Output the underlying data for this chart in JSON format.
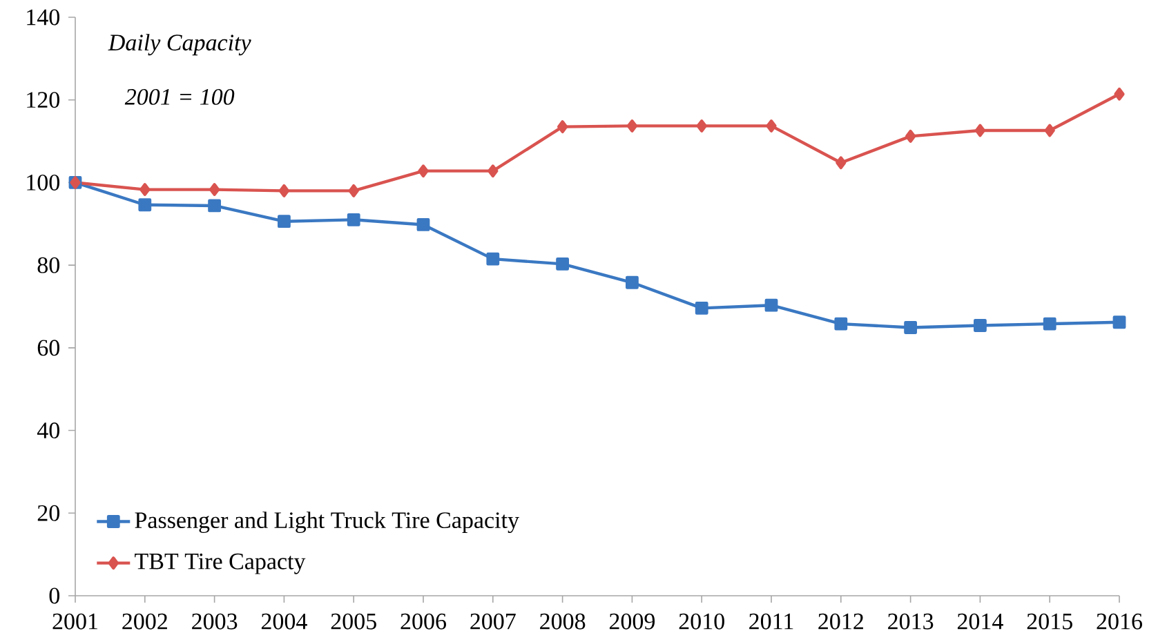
{
  "chart_data": {
    "type": "line",
    "x": [
      2001,
      2002,
      2003,
      2004,
      2005,
      2006,
      2007,
      2008,
      2009,
      2010,
      2011,
      2012,
      2013,
      2014,
      2015,
      2016
    ],
    "series": [
      {
        "name": "Passenger and Light Truck Tire Capacity",
        "color": "#3a78c2",
        "marker": "square",
        "values": [
          100,
          94.6,
          94.4,
          90.6,
          91.0,
          89.8,
          81.5,
          80.3,
          75.8,
          69.6,
          70.3,
          65.8,
          64.9,
          65.4,
          65.8,
          66.2
        ]
      },
      {
        "name": "TBT Tire Capacty",
        "color": "#d9534f",
        "marker": "diamond",
        "values": [
          100,
          98.3,
          98.3,
          98.0,
          98.0,
          102.8,
          102.8,
          113.5,
          113.7,
          113.7,
          113.7,
          104.8,
          111.2,
          112.6,
          112.6,
          121.4
        ]
      }
    ],
    "annotations": [
      "Daily Capacity",
      "2001 = 100"
    ],
    "xlim": [
      2001,
      2016
    ],
    "xticks": [
      2001,
      2002,
      2003,
      2004,
      2005,
      2006,
      2007,
      2008,
      2009,
      2010,
      2011,
      2012,
      2013,
      2014,
      2015,
      2016
    ],
    "ylim": [
      0,
      140
    ],
    "yticks": [
      0,
      20,
      40,
      60,
      80,
      100,
      120,
      140
    ],
    "legend": "bottom left",
    "grid": false,
    "line_style": "solid"
  }
}
